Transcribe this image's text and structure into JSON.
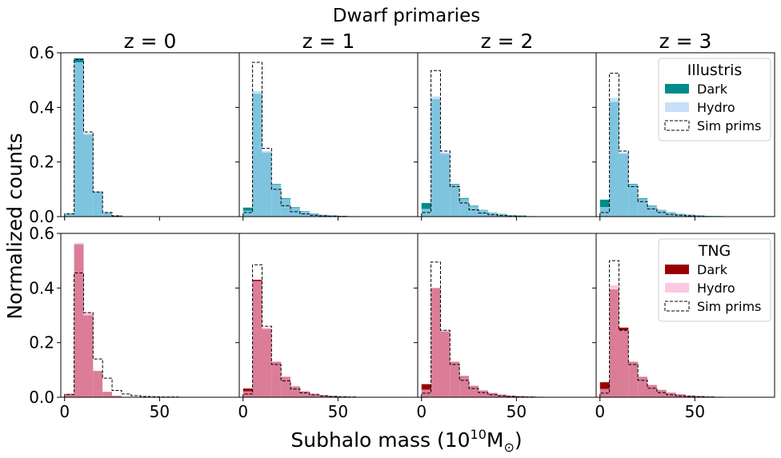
{
  "figure": {
    "suptitle": "Dwarf primaries",
    "ylabel": "Normalized counts",
    "xlabel_prefix": "Subhalo mass (10",
    "xlabel_exp": "10",
    "xlabel_unit": "M",
    "xlabel_sub": "⊙",
    "xlabel_suffix": ")"
  },
  "chart_data": {
    "type": "histogram-grid",
    "bins": [
      0,
      5,
      10,
      15,
      20,
      25,
      30,
      35,
      40,
      45,
      50,
      55,
      60,
      65,
      70,
      75,
      80,
      85,
      90
    ],
    "xlim": [
      -2,
      92
    ],
    "ylim": [
      0,
      0.6
    ],
    "xticks": [
      0,
      50
    ],
    "yticks": [
      0.0,
      0.2,
      0.4,
      0.6
    ],
    "ytick_labels": [
      "0.0",
      "0.2",
      "0.4",
      "0.6"
    ],
    "column_titles": [
      "z = 0",
      "z = 1",
      "z = 2",
      "z = 3"
    ],
    "rows": [
      {
        "legend_title": "Illustris",
        "legend_labels": {
          "dark": "Dark",
          "hydro": "Hydro",
          "sim": "Sim prims"
        },
        "colors": {
          "dark": "#008b8b",
          "hydro": "#c6e0f7",
          "overlap": "#7fc4df"
        },
        "panels": [
          {
            "dark": [
              0.01,
              0.58,
              0.3,
              0.09,
              0.015,
              0.004,
              0,
              0,
              0,
              0,
              0,
              0,
              0,
              0,
              0,
              0,
              0,
              0
            ],
            "hydro": [
              0.014,
              0.565,
              0.305,
              0.094,
              0.017,
              0.004,
              0,
              0,
              0,
              0,
              0,
              0,
              0,
              0,
              0,
              0,
              0,
              0
            ],
            "sim": [
              0.01,
              0.575,
              0.31,
              0.09,
              0.015,
              0.003,
              0,
              0,
              0,
              0,
              0,
              0,
              0,
              0,
              0,
              0,
              0,
              0
            ]
          },
          {
            "dark": [
              0.033,
              0.45,
              0.235,
              0.12,
              0.067,
              0.035,
              0.02,
              0.012,
              0.007,
              0.005,
              0.003,
              0.002,
              0.001,
              0,
              0,
              0,
              0,
              0
            ],
            "hydro": [
              0.022,
              0.46,
              0.24,
              0.118,
              0.064,
              0.033,
              0.019,
              0.011,
              0.007,
              0.005,
              0.003,
              0.002,
              0.001,
              0,
              0,
              0,
              0,
              0
            ],
            "sim": [
              0.015,
              0.565,
              0.25,
              0.1,
              0.04,
              0.018,
              0.01,
              0.005,
              0.003,
              0.002,
              0.001,
              0,
              0,
              0,
              0,
              0,
              0,
              0
            ]
          },
          {
            "dark": [
              0.05,
              0.43,
              0.23,
              0.12,
              0.068,
              0.04,
              0.025,
              0.015,
              0.01,
              0.006,
              0.004,
              0.002,
              0.001,
              0.001,
              0,
              0,
              0,
              0
            ],
            "hydro": [
              0.028,
              0.44,
              0.235,
              0.118,
              0.065,
              0.038,
              0.024,
              0.014,
              0.009,
              0.005,
              0.003,
              0.002,
              0.001,
              0,
              0,
              0,
              0,
              0
            ],
            "sim": [
              0.015,
              0.535,
              0.24,
              0.11,
              0.05,
              0.025,
              0.013,
              0.007,
              0.004,
              0.002,
              0.001,
              0,
              0,
              0,
              0,
              0,
              0,
              0
            ]
          },
          {
            "dark": [
              0.062,
              0.42,
              0.23,
              0.12,
              0.067,
              0.04,
              0.025,
              0.016,
              0.01,
              0.007,
              0.005,
              0.003,
              0.002,
              0.001,
              0.001,
              0,
              0,
              0
            ],
            "hydro": [
              0.035,
              0.435,
              0.235,
              0.118,
              0.064,
              0.038,
              0.024,
              0.015,
              0.009,
              0.006,
              0.004,
              0.002,
              0.001,
              0.001,
              0,
              0,
              0,
              0
            ],
            "sim": [
              0.015,
              0.525,
              0.24,
              0.11,
              0.055,
              0.028,
              0.015,
              0.008,
              0.005,
              0.003,
              0.001,
              0,
              0,
              0,
              0,
              0,
              0,
              0
            ]
          }
        ]
      },
      {
        "legend_title": "TNG",
        "legend_labels": {
          "dark": "Dark",
          "hydro": "Hydro",
          "sim": "Sim prims"
        },
        "colors": {
          "dark": "#990000",
          "hydro": "#fac8e2",
          "overlap": "#db7d97"
        },
        "panels": [
          {
            "dark": [
              0.012,
              0.56,
              0.3,
              0.095,
              0.02,
              0.005,
              0,
              0,
              0,
              0,
              0,
              0,
              0,
              0,
              0,
              0,
              0,
              0
            ],
            "hydro": [
              0.015,
              0.565,
              0.31,
              0.093,
              0.02,
              0.004,
              0,
              0,
              0,
              0,
              0,
              0,
              0,
              0,
              0,
              0,
              0,
              0
            ],
            "sim": [
              0.01,
              0.455,
              0.31,
              0.14,
              0.07,
              0.025,
              0.012,
              0.006,
              0.003,
              0.002,
              0.001,
              0.001,
              0,
              0,
              0,
              0,
              0,
              0
            ],
            "sim_edge": 60
          },
          {
            "dark": [
              0.032,
              0.43,
              0.25,
              0.13,
              0.075,
              0.04,
              0.022,
              0.013,
              0.008,
              0.005,
              0.003,
              0.002,
              0.001,
              0.001,
              0,
              0,
              0,
              0
            ],
            "hydro": [
              0.022,
              0.425,
              0.255,
              0.13,
              0.075,
              0.04,
              0.022,
              0.013,
              0.008,
              0.005,
              0.003,
              0.002,
              0.001,
              0.001,
              0,
              0,
              0,
              0
            ],
            "sim": [
              0.012,
              0.485,
              0.26,
              0.12,
              0.06,
              0.03,
              0.016,
              0.009,
              0.005,
              0.003,
              0.002,
              0.001,
              0,
              0,
              0,
              0,
              0,
              0
            ],
            "sim_edge": 60
          },
          {
            "dark": [
              0.048,
              0.4,
              0.24,
              0.13,
              0.078,
              0.042,
              0.025,
              0.016,
              0.01,
              0.006,
              0.004,
              0.003,
              0.002,
              0.001,
              0.001,
              0,
              0,
              0
            ],
            "hydro": [
              0.028,
              0.4,
              0.245,
              0.13,
              0.077,
              0.042,
              0.025,
              0.016,
              0.01,
              0.006,
              0.004,
              0.003,
              0.002,
              0.001,
              0.001,
              0,
              0,
              0
            ],
            "sim": [
              0.015,
              0.495,
              0.245,
              0.12,
              0.062,
              0.032,
              0.017,
              0.009,
              0.005,
              0.003,
              0.002,
              0.001,
              0,
              0,
              0,
              0,
              0,
              0
            ],
            "sim_edge": 60
          },
          {
            "dark": [
              0.055,
              0.395,
              0.255,
              0.13,
              0.075,
              0.045,
              0.027,
              0.017,
              0.011,
              0.007,
              0.005,
              0.003,
              0.002,
              0.001,
              0.001,
              0,
              0,
              0
            ],
            "hydro": [
              0.03,
              0.41,
              0.245,
              0.13,
              0.075,
              0.045,
              0.027,
              0.017,
              0.011,
              0.007,
              0.005,
              0.003,
              0.002,
              0.001,
              0.001,
              0,
              0,
              0
            ],
            "sim": [
              0.015,
              0.5,
              0.245,
              0.12,
              0.062,
              0.033,
              0.017,
              0.009,
              0.005,
              0.003,
              0.002,
              0.001,
              0,
              0,
              0,
              0,
              0,
              0
            ],
            "sim_edge": 60
          }
        ]
      }
    ]
  }
}
